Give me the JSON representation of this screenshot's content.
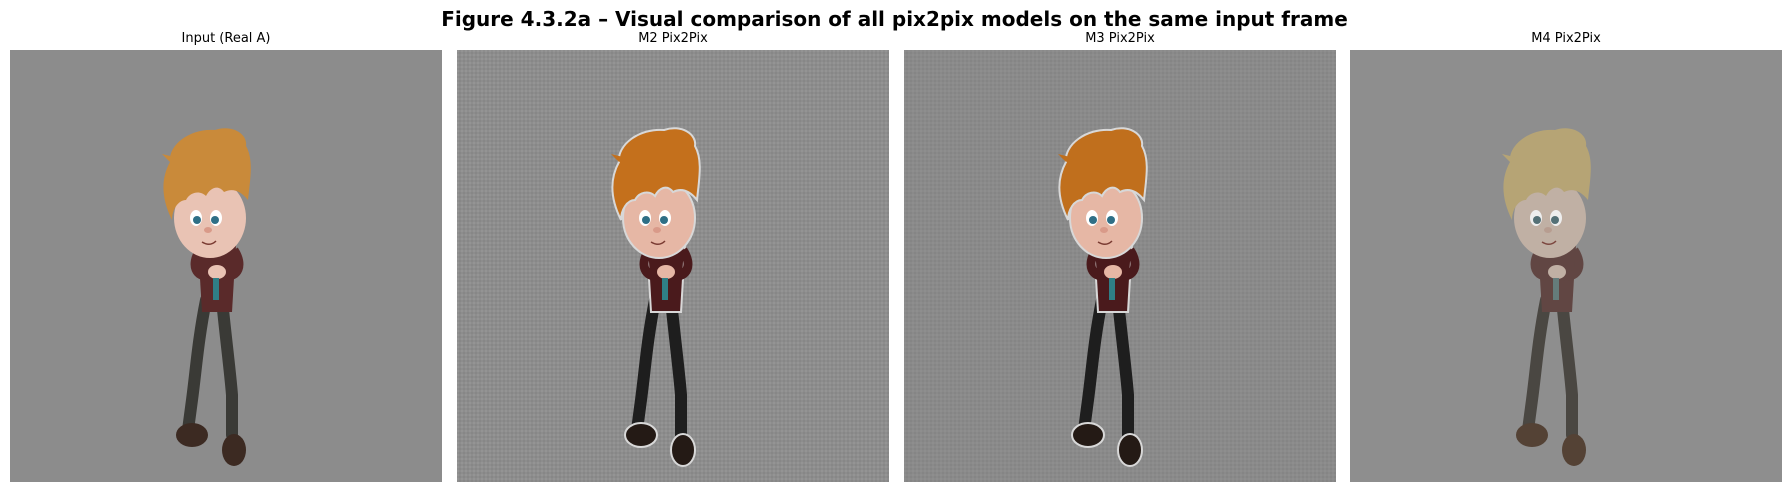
{
  "figure": {
    "title": "Figure 4.3.2a – Visual comparison of all pix2pix models on the same input frame"
  },
  "panels": [
    {
      "label": "Input (Real A)",
      "background": "#8c8c8c",
      "hair_color": "#c98a3a",
      "style": "input"
    },
    {
      "label": "M2 Pix2Pix",
      "background": "#8d8d8d",
      "hair_color": "#c4701c",
      "style": "generated-noisy"
    },
    {
      "label": "M3 Pix2Pix",
      "background": "#8a8a8a",
      "hair_color": "#c06f1d",
      "style": "generated-sharp"
    },
    {
      "label": "M4 Pix2Pix",
      "background": "#8e8e8e",
      "hair_color": "#bda971",
      "style": "generated-washed"
    }
  ]
}
